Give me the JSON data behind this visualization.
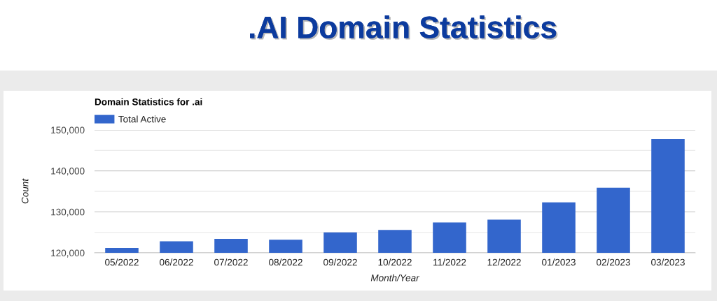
{
  "chart_data": {
    "type": "bar",
    "title": ".AI Domain Statistics",
    "subtitle": "Domain Statistics for .ai",
    "xlabel": "Month/Year",
    "ylabel": "Count",
    "categories": [
      "05/2022",
      "06/2022",
      "07/2022",
      "08/2022",
      "09/2022",
      "10/2022",
      "11/2022",
      "12/2022",
      "01/2023",
      "02/2023",
      "03/2023"
    ],
    "series": [
      {
        "name": "Total Active",
        "color": "#3366cc",
        "values": [
          121200,
          122800,
          123400,
          123200,
          125000,
          125600,
          127400,
          128100,
          132300,
          135900,
          147800
        ]
      }
    ],
    "ylim": [
      120000,
      150000
    ],
    "yticks": [
      {
        "value": 120000,
        "label": "120,000"
      },
      {
        "value": 125000,
        "label": null
      },
      {
        "value": 130000,
        "label": "130,000"
      },
      {
        "value": 135000,
        "label": null
      },
      {
        "value": 140000,
        "label": "140,000"
      },
      {
        "value": 145000,
        "label": null
      },
      {
        "value": 150000,
        "label": "150,000"
      }
    ],
    "grid": "y",
    "legend": "top left"
  }
}
